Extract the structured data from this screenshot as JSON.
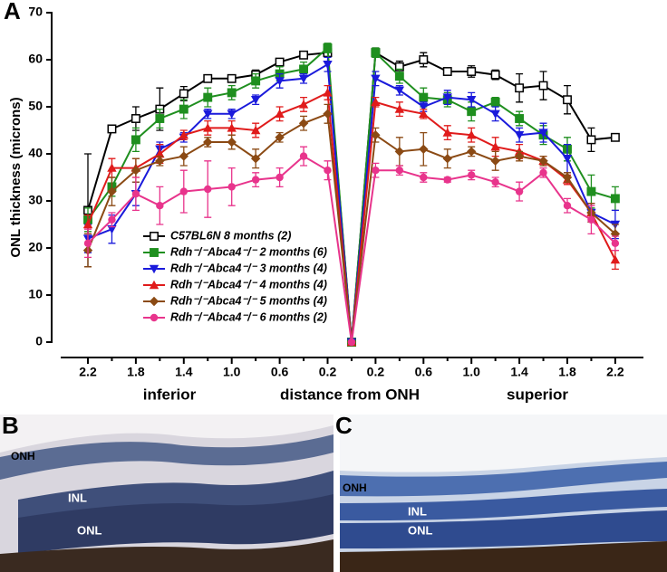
{
  "chart_data": {
    "type": "line",
    "panel_label": "A",
    "y_label": "ONL thickness (microns)",
    "x_label": "distance from ONH",
    "x_side_labels": [
      "inferior",
      "superior"
    ],
    "categories": [
      "2.2",
      null,
      "1.8",
      null,
      "1.4",
      null,
      "1.0",
      null,
      "0.6",
      null,
      "0.2",
      null,
      "0.2",
      null,
      "0.6",
      null,
      "1.0",
      null,
      "1.4",
      null,
      "1.8",
      null,
      "2.2"
    ],
    "ylim": [
      0,
      70
    ],
    "yticks": [
      0,
      10,
      20,
      30,
      40,
      50,
      60,
      70
    ],
    "series": [
      {
        "name": "C57BL6N 8 months (2)",
        "color": "#000000",
        "marker": "open-square",
        "values": [
          28,
          45.3,
          47.5,
          49.5,
          52.8,
          56,
          56,
          56.8,
          59.5,
          61,
          61.5,
          0,
          61.5,
          58.5,
          60,
          57.5,
          57.5,
          56.8,
          54,
          54.5,
          51.5,
          43,
          43.5
        ],
        "errors": [
          12,
          0.5,
          2.5,
          4.5,
          1.5,
          0.5,
          0.5,
          1,
          0.5,
          0.5,
          1,
          0,
          1,
          1.2,
          1.5,
          0.5,
          1.2,
          1,
          3,
          3,
          3,
          2.5,
          0.5
        ]
      },
      {
        "name": "Rdh⁻/⁻Abca4⁻/⁻ 2 months (6)",
        "color": "#1f8f1f",
        "marker": "square",
        "values": [
          26,
          33,
          43,
          47.5,
          49.5,
          52,
          53,
          55.5,
          57,
          58,
          62.5,
          0,
          61.5,
          56.5,
          52,
          51.5,
          49,
          51,
          47.5,
          44,
          41,
          32,
          30.5
        ],
        "errors": [
          2.5,
          2,
          2.5,
          2,
          2,
          2,
          1.5,
          1.5,
          1.5,
          1.5,
          1,
          0,
          1,
          1.5,
          2,
          1.5,
          2,
          1,
          1.5,
          2,
          2.5,
          3.5,
          2.5
        ]
      },
      {
        "name": "Rdh⁻/⁻Abca4⁻/⁻ 3 months (4)",
        "color": "#1a1adb",
        "marker": "down-triangle",
        "values": [
          22,
          24,
          31.5,
          41,
          43.5,
          48.5,
          48.5,
          51.5,
          55.5,
          56,
          59,
          0,
          56,
          53.5,
          50,
          52,
          51.5,
          48.5,
          44,
          44.5,
          39,
          27.5,
          25
        ],
        "errors": [
          3,
          3,
          2.5,
          1.5,
          1,
          1,
          1,
          1,
          1.5,
          1,
          1.5,
          0,
          1.5,
          1,
          1,
          1.5,
          1.5,
          1.5,
          1.5,
          2,
          3,
          2,
          3
        ]
      },
      {
        "name": "Rdh⁻/⁻Abca4⁻/⁻ 4 months (4)",
        "color": "#e01b1b",
        "marker": "up-triangle",
        "values": [
          25,
          37,
          37,
          40,
          44,
          45.5,
          45.5,
          45,
          48.5,
          50.5,
          53,
          0,
          51,
          49.5,
          48.5,
          44.5,
          44,
          41.5,
          40.5,
          38.5,
          34.5,
          27.5,
          17.5
        ],
        "errors": [
          2,
          2,
          2,
          2,
          1,
          1.5,
          1.5,
          1.5,
          1.5,
          1.5,
          1.5,
          0,
          1,
          1.5,
          1,
          1.5,
          1.5,
          2,
          1.5,
          1,
          1,
          2,
          2
        ]
      },
      {
        "name": "Rdh⁻/⁻Abca4⁻/⁻ 5 months (4)",
        "color": "#8b4a14",
        "marker": "diamond",
        "values": [
          19.5,
          32,
          36.5,
          38.5,
          39.5,
          42.5,
          42.5,
          39,
          43.5,
          46.5,
          48.5,
          0,
          44,
          40.5,
          41,
          39,
          40.5,
          38.5,
          39.5,
          38.5,
          35,
          27.5,
          23
        ],
        "errors": [
          3.5,
          3,
          2.5,
          1,
          2,
          1,
          1.5,
          2,
          1,
          1.5,
          2,
          0,
          1.5,
          3,
          3.5,
          2,
          1,
          2,
          1,
          1,
          1,
          2,
          2
        ]
      },
      {
        "name": "Rdh⁻/⁻Abca4⁻/⁻ 6 months (2)",
        "color": "#e8348c",
        "marker": "circle",
        "values": [
          21,
          26,
          31.5,
          29,
          32,
          32.5,
          33,
          34.5,
          35,
          39.5,
          36.5,
          0,
          36.5,
          36.5,
          35,
          34.5,
          35.5,
          34,
          32,
          36,
          29,
          26,
          21
        ],
        "errors": [
          3,
          1.5,
          3.5,
          4,
          4.5,
          6,
          4,
          1.5,
          2,
          2,
          2,
          0,
          1.5,
          1,
          1,
          0.5,
          1,
          1,
          2,
          1,
          1.5,
          3,
          1.5
        ]
      }
    ]
  },
  "panels": [
    {
      "label": "B",
      "labels": [
        "ONH",
        "INL",
        "ONL"
      ]
    },
    {
      "label": "C",
      "labels": [
        "ONH",
        "INL",
        "ONL"
      ]
    }
  ]
}
